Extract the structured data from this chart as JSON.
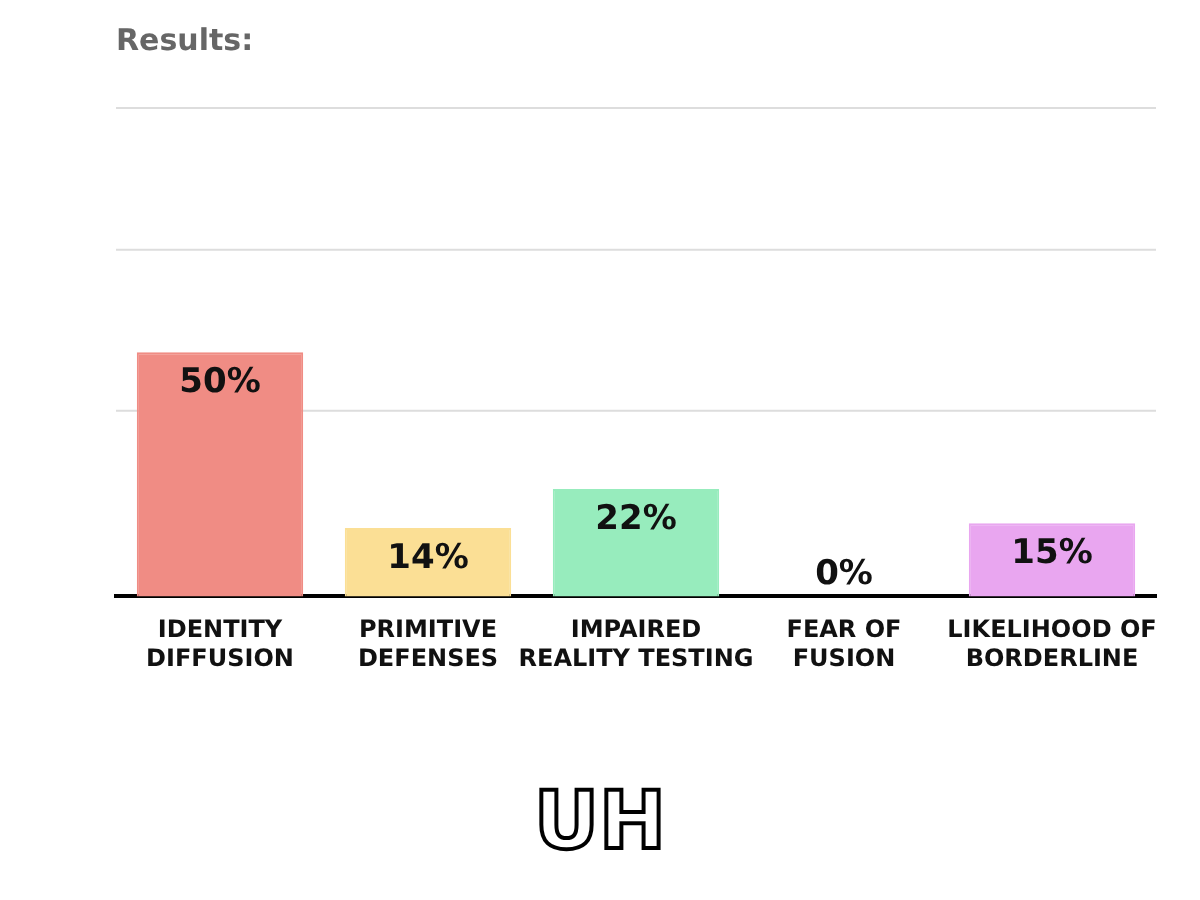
{
  "chart_data": {
    "type": "bar",
    "title": "Results:",
    "categories": [
      "IDENTITY DIFFUSION",
      "PRIMITIVE DEFENSES",
      "IMPAIRED REALITY TESTING",
      "FEAR OF FUSION",
      "LIKELIHOOD OF BORDERLINE"
    ],
    "values": [
      50,
      14,
      22,
      0,
      15
    ],
    "value_labels": [
      "50%",
      "14%",
      "22%",
      "0%",
      "15%"
    ],
    "colors": [
      "#f08c84",
      "#fbdf95",
      "#97ecbd",
      "#cccccc",
      "#e9a6f0"
    ],
    "ylim": [
      0,
      100
    ],
    "ref_lines": [
      {
        "axis": "y",
        "value": 38,
        "color": "#dddddd"
      },
      {
        "axis": "y",
        "value": 71,
        "color": "#dddddd"
      },
      {
        "axis": "y",
        "value": 100,
        "color": "#dddddd"
      }
    ],
    "tick_labels": "x",
    "grid": false,
    "annotations": [
      "UH"
    ]
  }
}
